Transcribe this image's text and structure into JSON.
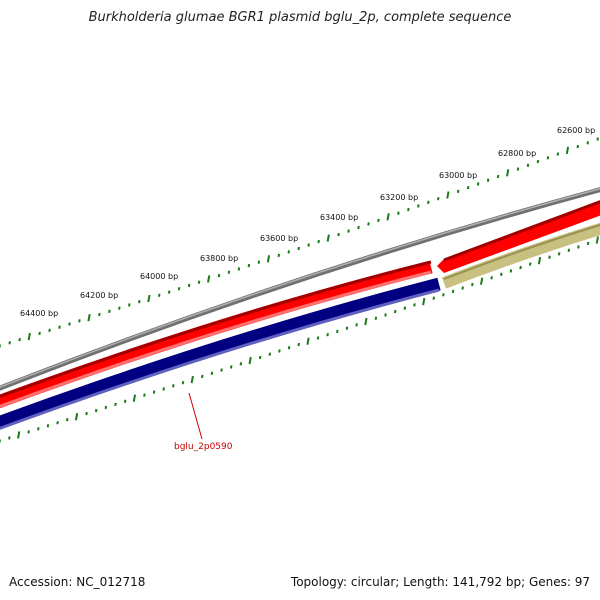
{
  "title": "Burkholderia glumae BGR1 plasmid bglu_2p, complete sequence",
  "footer": {
    "accession": "Accession: NC_012718",
    "summary": "Topology: circular; Length: 141,792 bp; Genes: 97"
  },
  "ruler": {
    "labels": [
      "62600 bp",
      "62800 bp",
      "63000 bp",
      "63200 bp",
      "63400 bp",
      "63600 bp",
      "63800 bp",
      "64000 bp",
      "64200 bp",
      "64400 bp"
    ]
  },
  "tracks": {
    "backbone_color": "#808080",
    "forward_color": "#ff0000",
    "reverse_color": "#000080",
    "other_color": "#c8c080",
    "tick_color": "#1a7a1a"
  },
  "gene_label": "bglu_2p0590"
}
